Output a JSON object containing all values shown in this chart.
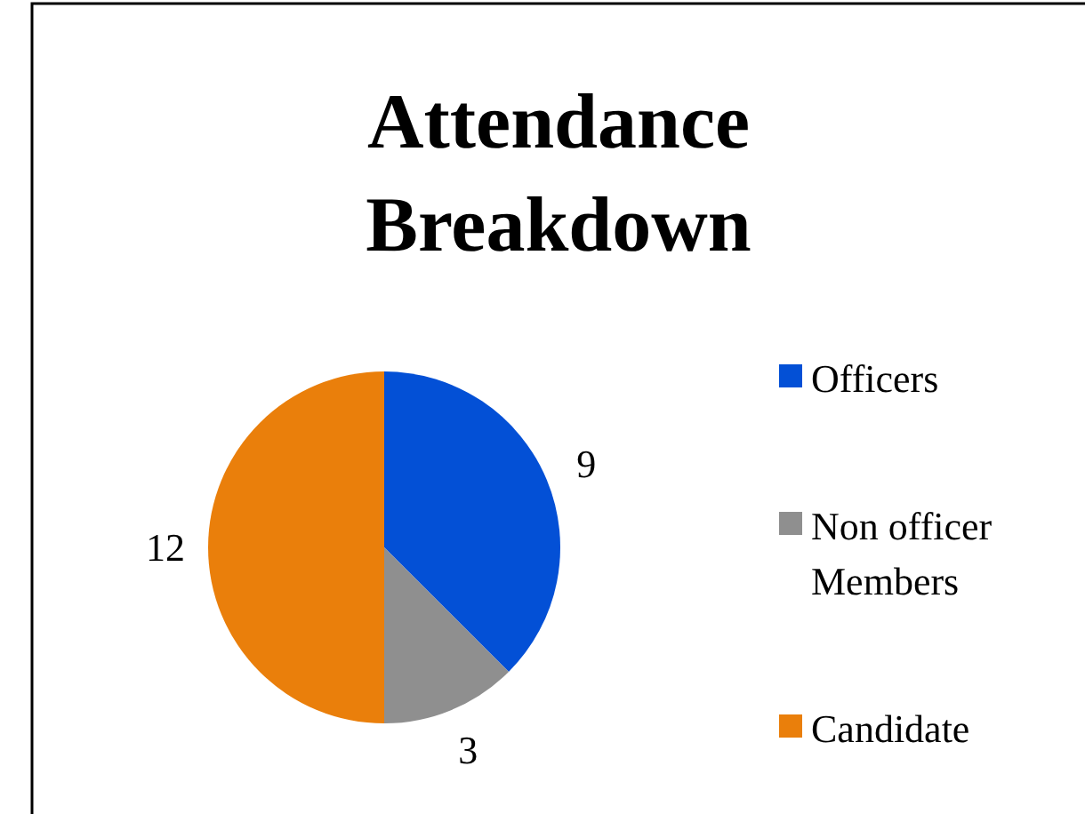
{
  "chart_data": {
    "type": "pie",
    "title": "Attendance Breakdown",
    "categories": [
      "Officers",
      "Non officer Members",
      "Candidate"
    ],
    "values": [
      9,
      3,
      12
    ],
    "colors": [
      "#0350d6",
      "#8f8f8f",
      "#ea7f0b"
    ],
    "data_labels": true,
    "legend": "right"
  }
}
